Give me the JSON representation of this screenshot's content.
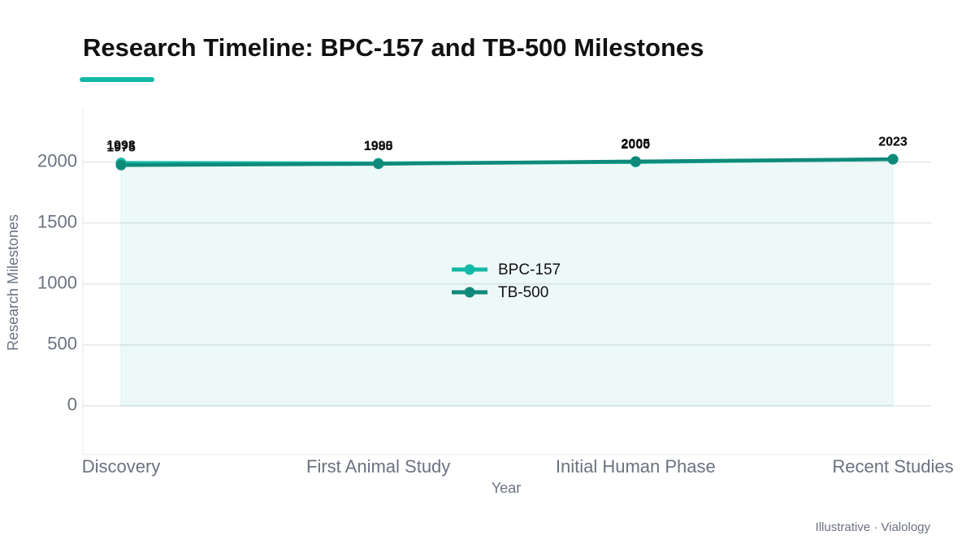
{
  "chart_data": {
    "type": "line",
    "title": "Research Timeline: BPC-157 and TB-500 Milestones",
    "xlabel": "Year",
    "ylabel": "Research Milestones",
    "source": "Illustrative · Vialology",
    "categories": [
      "Discovery",
      "First Animal Study",
      "Initial Human Phase",
      "Recent Studies"
    ],
    "series": [
      {
        "name": "BPC-157",
        "color": "#14b8a6",
        "values": [
          1993,
          1990,
          2000,
          2023
        ],
        "area": true
      },
      {
        "name": "TB-500",
        "color": "#0f8a7a",
        "values": [
          1975,
          1985,
          2005,
          2023
        ]
      }
    ],
    "ylim": [
      -400,
      2430
    ],
    "yticks": [
      0,
      500,
      1000,
      1500,
      2000
    ],
    "grid": true,
    "legend": "center"
  }
}
